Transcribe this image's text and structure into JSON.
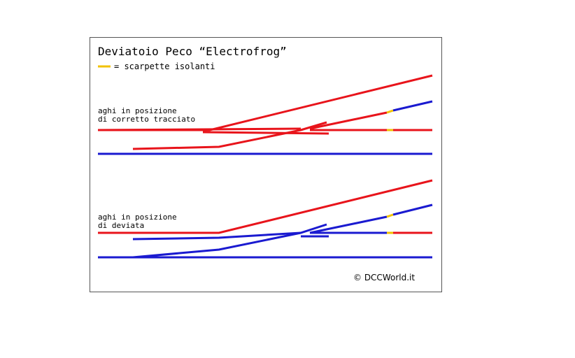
{
  "header": {
    "title": "Deviatoio Peco “Electrofrog”",
    "legend": "= scarpette isolanti"
  },
  "panels": [
    {
      "label": [
        "aghi in posizione",
        "di corretto tracciato"
      ]
    },
    {
      "label": [
        "aghi in posizione",
        "di deviata"
      ]
    }
  ],
  "footer": {
    "credit": "© DCCWorld.it"
  }
}
